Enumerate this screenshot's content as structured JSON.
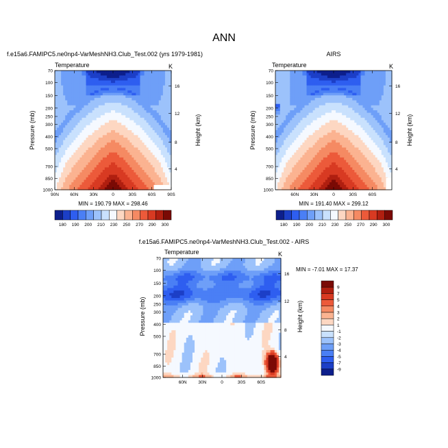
{
  "figure": {
    "main_title": "ANN"
  },
  "colors": {
    "cool": [
      "#0d1f8c",
      "#1c3fc7",
      "#2e5ef0",
      "#4a7ff5",
      "#6e9ff8",
      "#9cc2fb",
      "#c9e1fd"
    ],
    "neutral": "#f5f9ff",
    "warm": [
      "#fdd7c2",
      "#fbb391",
      "#f58a63",
      "#ec5a3a",
      "#d83a22",
      "#b01f10",
      "#7a0a05"
    ]
  },
  "chart_data": [
    {
      "type": "heatmap",
      "title": "f.e15a6.FAMIPC5.ne0np4-VarMeshNH3.Club_Test.002 (yrs 1979-1981)",
      "left_label": "Temperature",
      "right_label": "K",
      "xlabel": "",
      "ylabel": "Pressure (mb)",
      "y2label": "Height (km)",
      "x_ticks": [
        "90N",
        "60N",
        "30N",
        "0",
        "30S",
        "60S",
        "90S"
      ],
      "y_ticks": [
        "70",
        "100",
        "150",
        "200",
        "250",
        "300",
        "400",
        "500",
        "700",
        "850",
        "1000"
      ],
      "y2_ticks": [
        "16",
        "12",
        "8",
        "4"
      ],
      "min_max_text": "MIN = 190.79   MAX = 298.46",
      "colorbar_labels": [
        "180",
        "190",
        "200",
        "210",
        "230",
        "250",
        "270",
        "290",
        "300"
      ]
    },
    {
      "type": "heatmap",
      "title": "AIRS",
      "left_label": "Temperature",
      "right_label": "K",
      "xlabel": "",
      "ylabel": "Pressure (mb)",
      "y2label": "Height (km)",
      "x_ticks": [
        "60N",
        "30N",
        "0",
        "30S",
        "60S"
      ],
      "y_ticks": [
        "70",
        "100",
        "150",
        "200",
        "250",
        "300",
        "400",
        "500",
        "700",
        "850",
        "1000"
      ],
      "y2_ticks": [
        "16",
        "12",
        "8",
        "4"
      ],
      "min_max_text": "MIN = 191.40   MAX = 299.12",
      "colorbar_labels": [
        "180",
        "190",
        "200",
        "210",
        "230",
        "250",
        "270",
        "290",
        "300"
      ]
    },
    {
      "type": "heatmap",
      "title": "f.e15a6.FAMIPC5.ne0np4-VarMeshNH3.Club_Test.002 - AIRS",
      "left_label": "Temperature",
      "right_label": "K",
      "xlabel": "",
      "ylabel": "Pressure (mb)",
      "y2label": "Height (km)",
      "x_ticks": [
        "60N",
        "30N",
        "0",
        "30S",
        "60S"
      ],
      "y_ticks": [
        "70",
        "100",
        "150",
        "200",
        "250",
        "300",
        "400",
        "500",
        "700",
        "850",
        "1000"
      ],
      "y2_ticks": [
        "16",
        "12",
        "8",
        "4"
      ],
      "min_max_text": "MIN = -7.01   MAX = 17.37",
      "colorbar_labels": [
        "9",
        "7",
        "5",
        "4",
        "3",
        "2",
        "1",
        "-1",
        "-2",
        "-3",
        "-4",
        "-5",
        "-7",
        "-9"
      ]
    }
  ]
}
